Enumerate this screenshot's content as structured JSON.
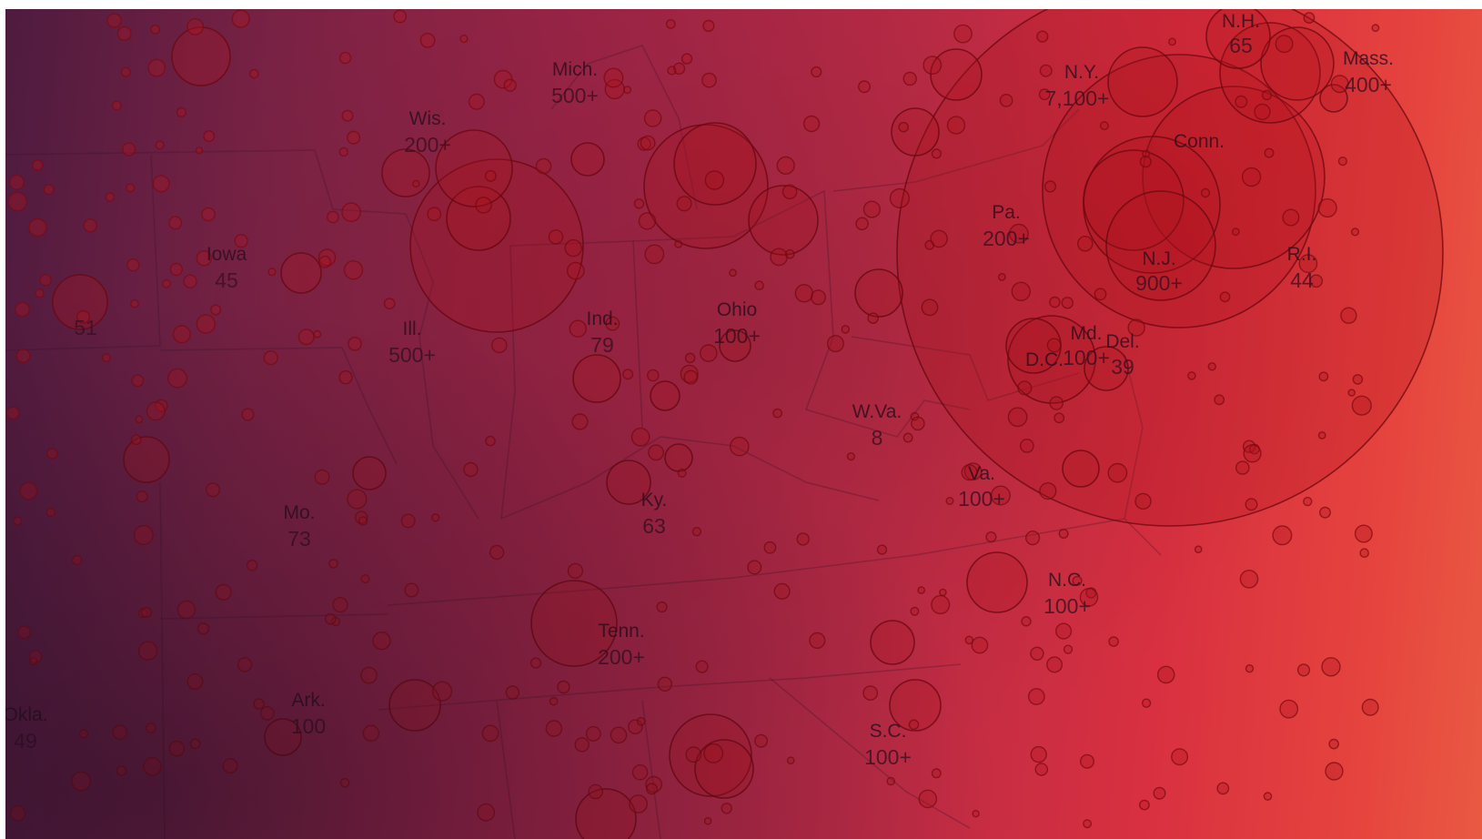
{
  "map": {
    "colors": {
      "bubble_fill": "#b3141f",
      "bubble_stroke": "#6b0710",
      "label": "#2a0d1c"
    },
    "states": [
      {
        "id": "iowa",
        "name": "Iowa",
        "count": "45"
      },
      {
        "id": "wis",
        "name": "Wis.",
        "count": "200+"
      },
      {
        "id": "mich",
        "name": "Mich.",
        "count": "500+"
      },
      {
        "id": "ill",
        "name": "Ill.",
        "count": "500+"
      },
      {
        "id": "ind",
        "name": "Ind.",
        "count": "79"
      },
      {
        "id": "ohio",
        "name": "Ohio",
        "count": "100+"
      },
      {
        "id": "ny",
        "name": "N.Y.",
        "count": "7,100+"
      },
      {
        "id": "mass",
        "name": "Mass.",
        "count": "400+"
      },
      {
        "id": "nh",
        "name": "N.H.",
        "count": "65"
      },
      {
        "id": "conn",
        "name": "Conn.",
        "count": ""
      },
      {
        "id": "pa",
        "name": "Pa.",
        "count": "200+"
      },
      {
        "id": "nj",
        "name": "N.J.",
        "count": "900+"
      },
      {
        "id": "ri",
        "name": "R.I.",
        "count": "44"
      },
      {
        "id": "md",
        "name": "Md.",
        "count": "100+"
      },
      {
        "id": "dc",
        "name": "D.C.",
        "count": ""
      },
      {
        "id": "del",
        "name": "Del.",
        "count": "39"
      },
      {
        "id": "wva",
        "name": "W.Va.",
        "count": "8"
      },
      {
        "id": "va",
        "name": "Va.",
        "count": "100+"
      },
      {
        "id": "ky",
        "name": "Ky.",
        "count": "63"
      },
      {
        "id": "mo",
        "name": "Mo.",
        "count": "73"
      },
      {
        "id": "nc",
        "name": "N.C.",
        "count": "100+"
      },
      {
        "id": "tenn",
        "name": "Tenn.",
        "count": "200+"
      },
      {
        "id": "ark",
        "name": "Ark.",
        "count": "100"
      },
      {
        "id": "sc",
        "name": "S.C.",
        "count": "100+"
      },
      {
        "id": "okla",
        "name": "Okla.",
        "count": "49"
      },
      {
        "id": "nebr",
        "name": "",
        "count": "51"
      }
    ]
  }
}
